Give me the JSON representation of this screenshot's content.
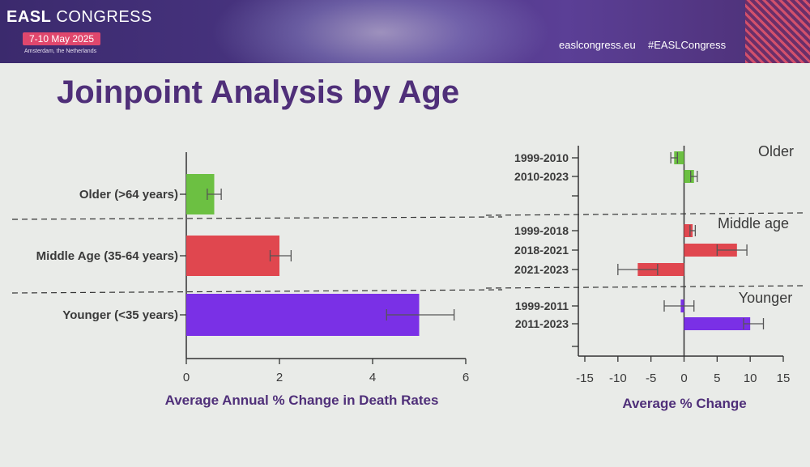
{
  "header": {
    "logo_bold": "EASL",
    "logo_text": " CONGRESS",
    "dates": "7-10 May 2025",
    "location": "Amsterdam, the Netherlands",
    "website": "easlcongress.eu",
    "hashtag": "#EASLCongress"
  },
  "slide": {
    "title": "Joinpoint Analysis by Age"
  },
  "chart_data": [
    {
      "type": "bar",
      "orientation": "horizontal",
      "categories": [
        "Older (>64 years)",
        "Middle Age (35-64 years)",
        "Younger (<35 years)"
      ],
      "values": [
        0.6,
        2.0,
        5.0
      ],
      "error_low": [
        0.45,
        1.8,
        4.3
      ],
      "error_high": [
        0.75,
        2.25,
        5.75
      ],
      "colors": [
        "#6cc042",
        "#e0474f",
        "#7a30e6"
      ],
      "xlim": [
        0,
        6
      ],
      "xticks": [
        "0",
        "2",
        "4",
        "6"
      ],
      "xlabel": "Average Annual %  Change in Death Rates"
    },
    {
      "type": "bar",
      "orientation": "horizontal",
      "groups": [
        {
          "name": "Older",
          "color": "#6cc042",
          "bars": [
            {
              "label": "1999-2010",
              "value": -1.5,
              "err_low": -2.0,
              "err_high": -1.0
            },
            {
              "label": "2010-2023",
              "value": 1.5,
              "err_low": 1.0,
              "err_high": 2.0
            }
          ]
        },
        {
          "name": "Middle age",
          "color": "#e0474f",
          "bars": [
            {
              "label": "1999-2018",
              "value": 1.3,
              "err_low": 0.9,
              "err_high": 1.7
            },
            {
              "label": "2018-2021",
              "value": 8.0,
              "err_low": 5.0,
              "err_high": 9.5
            },
            {
              "label": "2021-2023",
              "value": -7.0,
              "err_low": -10.0,
              "err_high": -4.0
            }
          ]
        },
        {
          "name": "Younger",
          "color": "#7a30e6",
          "bars": [
            {
              "label": "1999-2011",
              "value": -0.5,
              "err_low": -3.0,
              "err_high": 1.5
            },
            {
              "label": "2011-2023",
              "value": 10.0,
              "err_low": 9.0,
              "err_high": 12.0
            }
          ]
        }
      ],
      "xlim": [
        -15,
        15
      ],
      "xticks": [
        "-15",
        "-10",
        "-5",
        "0",
        "5",
        "10",
        "15"
      ],
      "xlabel": "Average % Change"
    }
  ]
}
